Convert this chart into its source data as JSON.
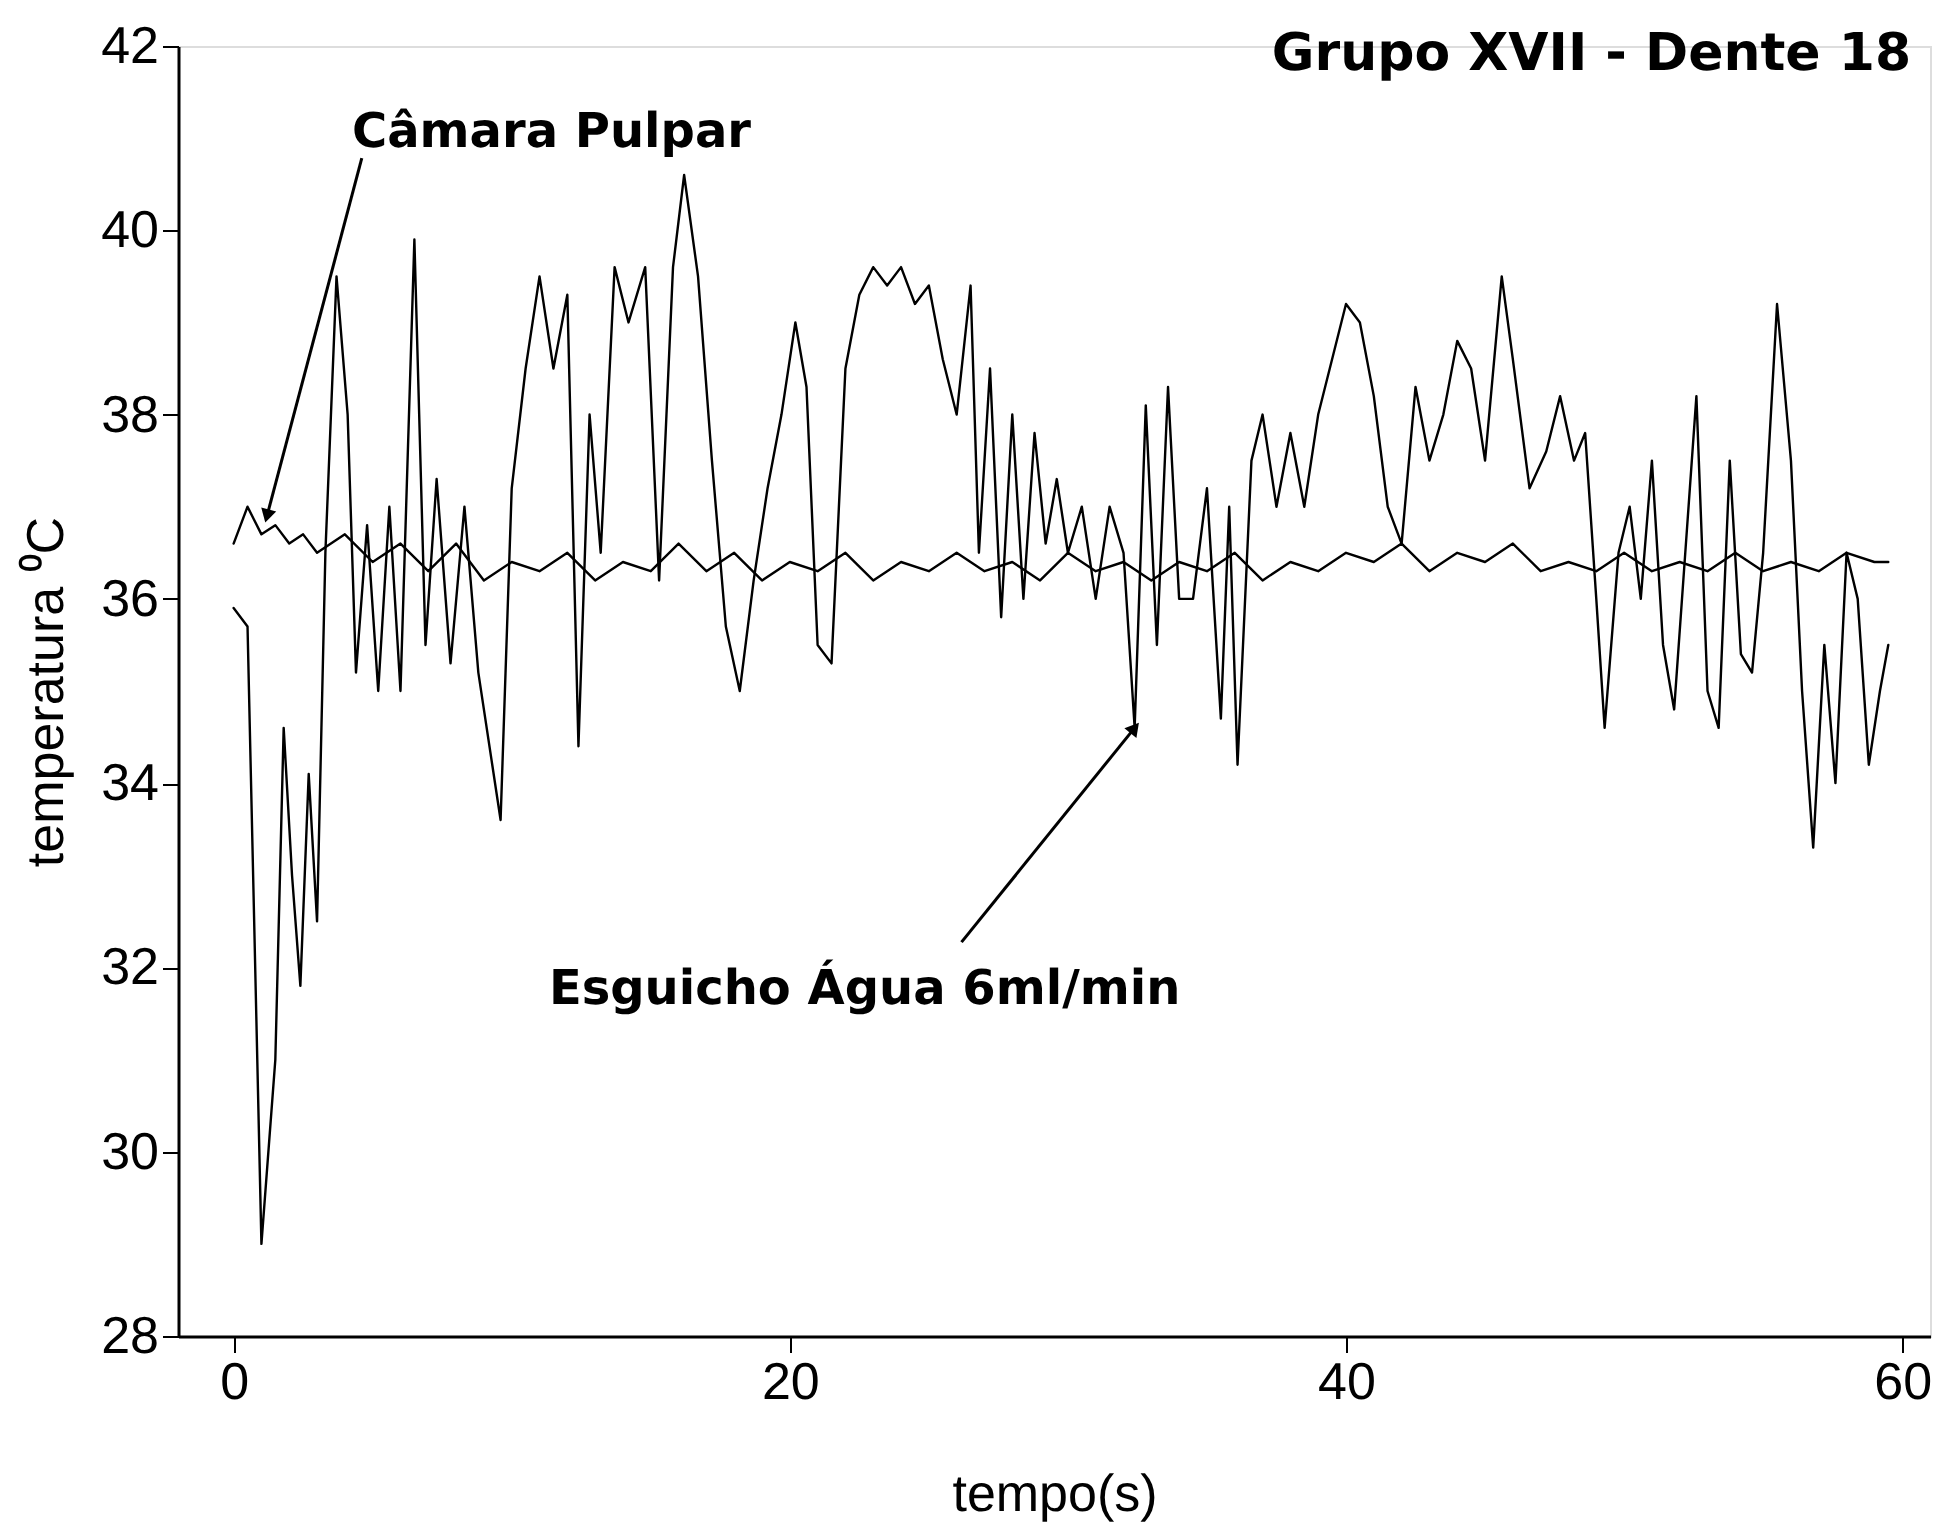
{
  "chart_data": {
    "type": "line",
    "title": "Grupo XVII - Dente 18",
    "xlabel": "tempo(s)",
    "ylabel": "temperatura ⁰C",
    "xlim": [
      -2,
      61
    ],
    "xticks": [
      0,
      20,
      40,
      60
    ],
    "ylim": [
      28,
      42
    ],
    "yticks": [
      28,
      30,
      32,
      34,
      36,
      38,
      40,
      42
    ],
    "grid": false,
    "marker": "none",
    "line_style": "solid",
    "series": [
      {
        "color": "#000000",
        "x": [
          0,
          0.5,
          1.0,
          1.5,
          1.8,
          2.1,
          2.4,
          2.7,
          3.0,
          3.3,
          3.7,
          4.1,
          4.4,
          4.8,
          5.2,
          5.6,
          6.0,
          6.5,
          6.9,
          7.3,
          7.8,
          8.3,
          8.8,
          9.3,
          9.6,
          10.0,
          10.5,
          11.0,
          11.5,
          12.0,
          12.4,
          12.8,
          13.2,
          13.7,
          14.2,
          14.8,
          15.3,
          15.8,
          16.2,
          16.7,
          17.2,
          17.7,
          18.2,
          18.7,
          19.2,
          19.7,
          20.2,
          20.6,
          21.0,
          21.5,
          22.0,
          22.5,
          23.0,
          23.5,
          24.0,
          24.5,
          25.0,
          25.5,
          26.0,
          26.5,
          26.8,
          27.2,
          27.6,
          28.0,
          28.4,
          28.8,
          29.2,
          29.6,
          30.0,
          30.5,
          31.0,
          31.5,
          32.0,
          32.4,
          32.8,
          33.2,
          33.6,
          34.0,
          34.5,
          35.0,
          35.5,
          35.8,
          36.1,
          36.6,
          37.0,
          37.5,
          38.0,
          38.5,
          39.0,
          39.5,
          40.0,
          40.5,
          41.0,
          41.5,
          42.0,
          42.5,
          43.0,
          43.5,
          44.0,
          44.5,
          45.0,
          45.6,
          46.0,
          46.6,
          47.2,
          47.7,
          48.2,
          48.6,
          49.0,
          49.3,
          49.8,
          50.2,
          50.6,
          51.0,
          51.4,
          51.8,
          52.2,
          52.6,
          53.0,
          53.4,
          53.8,
          54.2,
          54.6,
          55.0,
          55.5,
          56.0,
          56.4,
          56.8,
          57.2,
          57.6,
          58.0,
          58.4,
          58.8,
          59.2,
          59.5
        ],
        "values": [
          35.9,
          35.7,
          29.0,
          31.0,
          34.6,
          33.0,
          31.8,
          34.1,
          32.5,
          36.5,
          39.5,
          38.0,
          35.2,
          36.8,
          35.0,
          37.0,
          35.0,
          39.9,
          35.5,
          37.3,
          35.3,
          37.0,
          35.2,
          34.2,
          33.6,
          37.2,
          38.5,
          39.5,
          38.5,
          39.3,
          34.4,
          38.0,
          36.5,
          39.6,
          39.0,
          39.6,
          36.2,
          39.6,
          40.6,
          39.5,
          37.5,
          35.7,
          35.0,
          36.2,
          37.2,
          38.0,
          39.0,
          38.3,
          35.5,
          35.3,
          38.5,
          39.3,
          39.6,
          39.4,
          39.6,
          39.2,
          39.4,
          38.6,
          38.0,
          39.4,
          36.5,
          38.5,
          35.8,
          38.0,
          36.0,
          37.8,
          36.6,
          37.3,
          36.5,
          37.0,
          36.0,
          37.0,
          36.5,
          34.6,
          38.1,
          35.5,
          38.3,
          36.0,
          36.0,
          37.2,
          34.7,
          37.0,
          34.2,
          37.5,
          38.0,
          37.0,
          37.8,
          37.0,
          38.0,
          38.6,
          39.2,
          39.0,
          38.2,
          37.0,
          36.6,
          38.3,
          37.5,
          38.0,
          38.8,
          38.5,
          37.5,
          39.5,
          38.6,
          37.2,
          37.6,
          38.2,
          37.5,
          37.8,
          36.0,
          34.6,
          36.5,
          37.0,
          36.0,
          37.5,
          35.5,
          34.8,
          36.5,
          38.2,
          35.0,
          34.6,
          37.5,
          35.4,
          35.2,
          36.5,
          39.2,
          37.5,
          35.0,
          33.3,
          35.5,
          34.0,
          36.5,
          36.0,
          34.2,
          35.0,
          35.5
        ]
      },
      {
        "color": "#000000",
        "x": [
          0,
          0.5,
          1.0,
          1.5,
          2.0,
          2.5,
          3.0,
          4.0,
          5.0,
          6.0,
          7.0,
          8.0,
          9.0,
          10.0,
          11.0,
          12.0,
          13.0,
          14.0,
          15.0,
          16.0,
          17.0,
          18.0,
          19.0,
          20.0,
          21.0,
          22.0,
          23.0,
          24.0,
          25.0,
          26.0,
          27.0,
          28.0,
          29.0,
          30.0,
          31.0,
          32.0,
          33.0,
          34.0,
          35.0,
          36.0,
          37.0,
          38.0,
          39.0,
          40.0,
          41.0,
          42.0,
          43.0,
          44.0,
          45.0,
          46.0,
          47.0,
          48.0,
          49.0,
          50.0,
          51.0,
          52.0,
          53.0,
          54.0,
          55.0,
          56.0,
          57.0,
          58.0,
          59.0,
          59.5
        ],
        "values": [
          36.6,
          37.0,
          36.7,
          36.8,
          36.6,
          36.7,
          36.5,
          36.7,
          36.4,
          36.6,
          36.3,
          36.6,
          36.2,
          36.4,
          36.3,
          36.5,
          36.2,
          36.4,
          36.3,
          36.6,
          36.3,
          36.5,
          36.2,
          36.4,
          36.3,
          36.5,
          36.2,
          36.4,
          36.3,
          36.5,
          36.3,
          36.4,
          36.2,
          36.5,
          36.3,
          36.4,
          36.2,
          36.4,
          36.3,
          36.5,
          36.2,
          36.4,
          36.3,
          36.5,
          36.4,
          36.6,
          36.3,
          36.5,
          36.4,
          36.6,
          36.3,
          36.4,
          36.3,
          36.5,
          36.3,
          36.4,
          36.3,
          36.5,
          36.3,
          36.4,
          36.3,
          36.5,
          36.4,
          36.4
        ]
      }
    ],
    "annotations": [
      {
        "text": "Câmara Pulpar",
        "x": 1.2,
        "y": 36.9
      },
      {
        "text": "Esguicho Água 6ml/min",
        "x": 32.4,
        "y": 34.6
      }
    ]
  }
}
